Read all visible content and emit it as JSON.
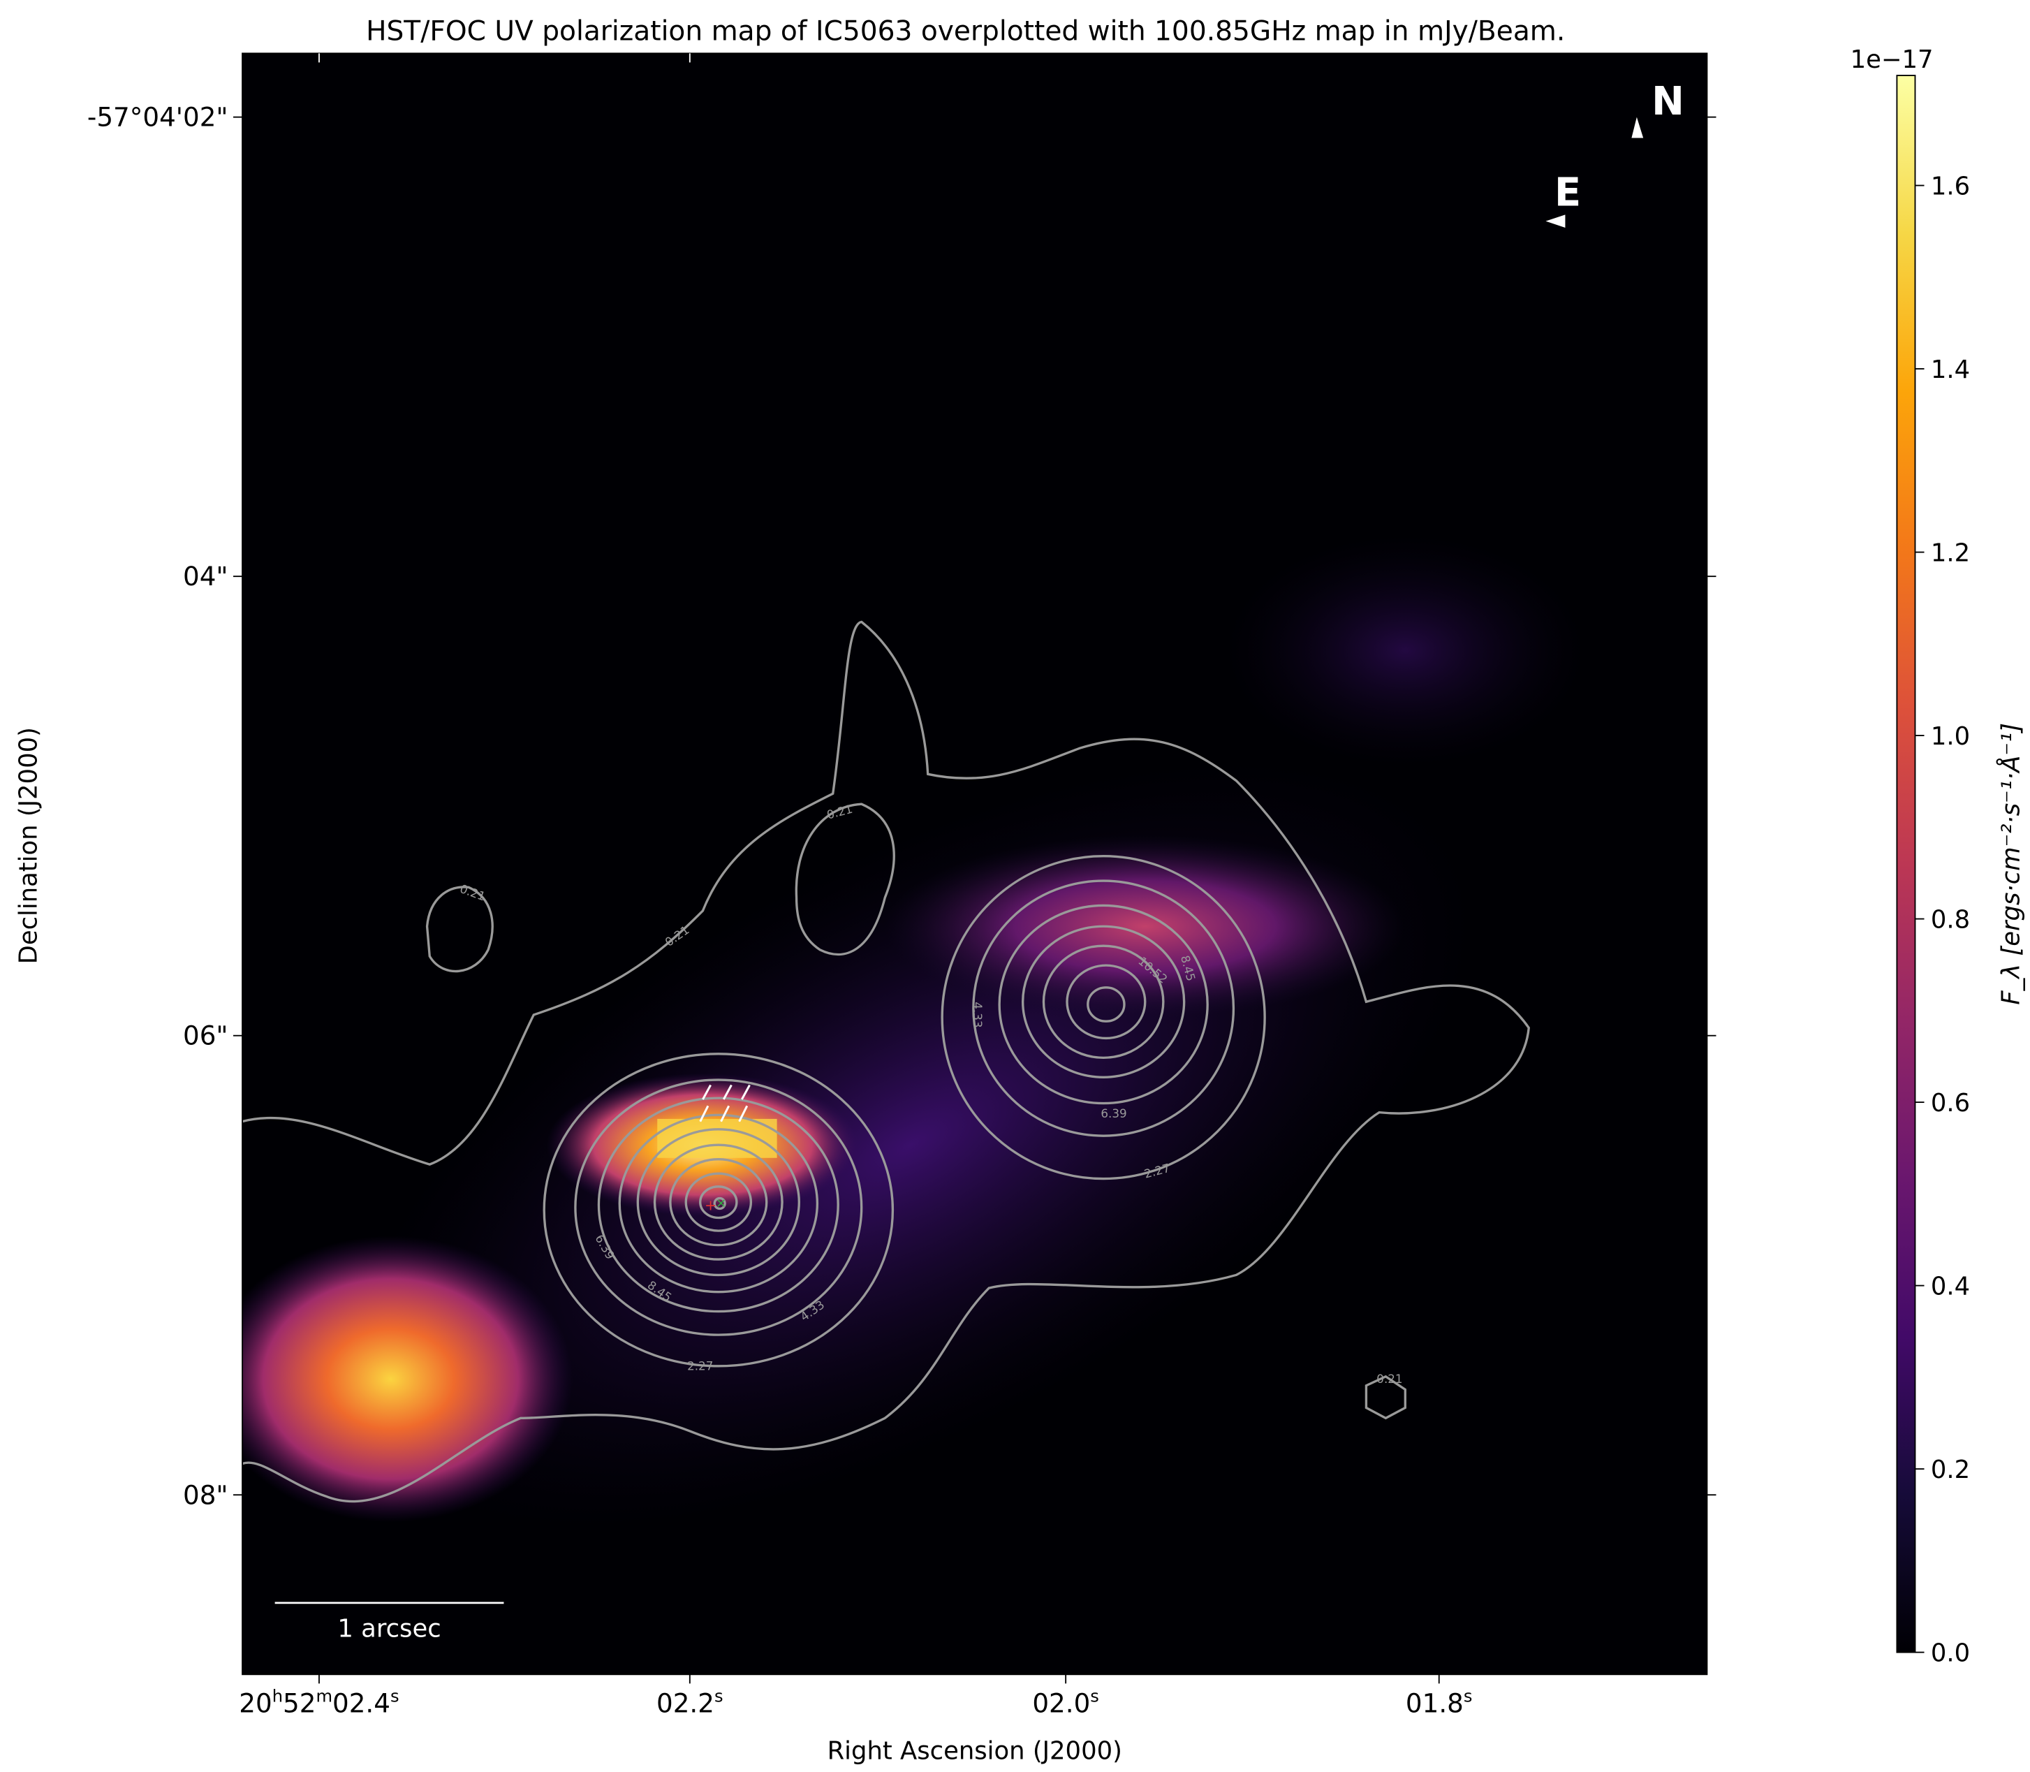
{
  "chart_data": {
    "type": "heatmap",
    "title": "HST/FOC UV polarization map of IC5063 overplotted with 100.85GHz map in mJy/Beam.",
    "xlabel": "Right Ascension (J2000)",
    "ylabel": "Declination (J2000)",
    "x_ticks": [
      {
        "main": "20",
        "sup1": "h",
        "mid": "52",
        "sup2": "m",
        "sec": "02.4",
        "sup3": "s"
      },
      {
        "main": "02.2",
        "sup3": "s"
      },
      {
        "main": "02.0",
        "sup3": "s"
      },
      {
        "main": "01.8",
        "sup3": "s"
      }
    ],
    "y_ticks": [
      "-57°04'02\"",
      "04\"",
      "06\"",
      "08\""
    ],
    "colorbar": {
      "label": "F_λ [ergs·cm⁻²·s⁻¹·Å⁻¹]",
      "offset_text": "1e−17",
      "colormap": "inferno",
      "range": [
        0.0,
        1.72
      ],
      "ticks": [
        "0.0",
        "0.2",
        "0.4",
        "0.6",
        "0.8",
        "1.0",
        "1.2",
        "1.4",
        "1.6"
      ]
    },
    "contour_levels": [
      "0.21",
      "2.27",
      "4.33",
      "6.39",
      "8.45",
      "10.52"
    ],
    "contour_color": "#9a9a9a",
    "scale_bar_label": "1 arcsec",
    "compass": {
      "north": "N",
      "east": "E"
    }
  }
}
